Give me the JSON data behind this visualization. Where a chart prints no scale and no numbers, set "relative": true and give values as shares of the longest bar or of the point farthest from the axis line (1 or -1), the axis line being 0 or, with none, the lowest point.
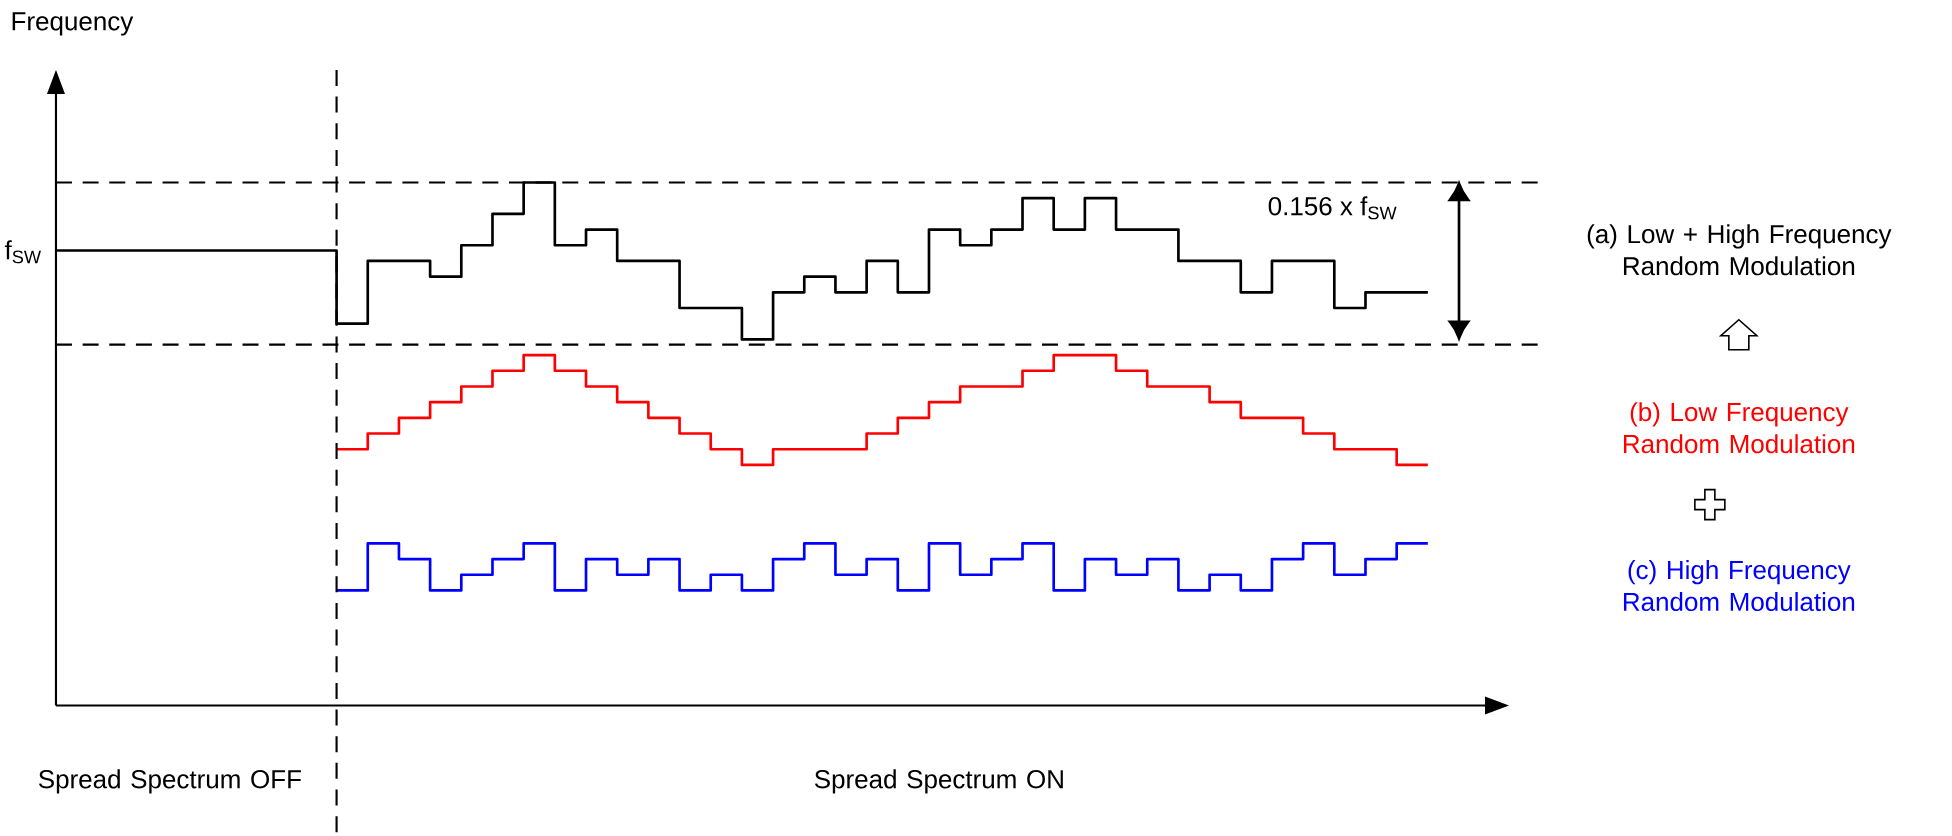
{
  "chart_data": {
    "type": "step",
    "relative": true,
    "tick_labels": false,
    "legend": "right",
    "categories": [
      null,
      null,
      null,
      null,
      null,
      null,
      null,
      null,
      null,
      null,
      null,
      null,
      null,
      null,
      null,
      null,
      null,
      null,
      null,
      null,
      null,
      null,
      null,
      null,
      null,
      null,
      null,
      null,
      null,
      null,
      null,
      null,
      null,
      null,
      null,
      null,
      null,
      null,
      null,
      null,
      null,
      null,
      null,
      null,
      null
    ],
    "series": [
      {
        "name": "(a) Low + High Frequency Random Modulation",
        "color": "#000000",
        "values": [
          0.87,
          0.87,
          0.87,
          0.87,
          0.87,
          0.87,
          0.87,
          0.87,
          0.87,
          0.73,
          0.85,
          0.85,
          0.82,
          0.88,
          0.94,
          1,
          0.88,
          0.91,
          0.85,
          0.85,
          0.76,
          0.76,
          0.7,
          0.79,
          0.82,
          0.79,
          0.85,
          0.79,
          0.91,
          0.88,
          0.91,
          0.97,
          0.91,
          0.97,
          0.91,
          0.91,
          0.85,
          0.85,
          0.79,
          0.85,
          0.85,
          0.76,
          0.79,
          0.79,
          0.79
        ]
      },
      {
        "name": "(b) Low Frequency Random Modulation",
        "color": "#ff0000",
        "values": [
          null,
          null,
          null,
          null,
          null,
          null,
          null,
          null,
          null,
          0.49,
          0.52,
          0.55,
          0.58,
          0.61,
          0.64,
          0.67,
          0.64,
          0.61,
          0.58,
          0.55,
          0.52,
          0.49,
          0.46,
          0.49,
          0.49,
          0.49,
          0.52,
          0.55,
          0.58,
          0.61,
          0.61,
          0.64,
          0.67,
          0.67,
          0.64,
          0.61,
          0.61,
          0.58,
          0.55,
          0.55,
          0.52,
          0.49,
          0.49,
          0.46,
          0.46
        ]
      },
      {
        "name": "(c) High Frequency Random Modulation",
        "color": "#0000ff",
        "values": [
          null,
          null,
          null,
          null,
          null,
          null,
          null,
          null,
          null,
          0.22,
          0.31,
          0.28,
          0.22,
          0.25,
          0.28,
          0.31,
          0.22,
          0.28,
          0.25,
          0.28,
          0.22,
          0.25,
          0.22,
          0.28,
          0.31,
          0.25,
          0.28,
          0.22,
          0.31,
          0.25,
          0.28,
          0.31,
          0.22,
          0.28,
          0.25,
          0.28,
          0.22,
          0.25,
          0.22,
          0.28,
          0.31,
          0.25,
          0.28,
          0.31,
          0.31
        ]
      }
    ],
    "ref_lines": [
      {
        "axis": "y",
        "value": 1.0,
        "line_style": "dashed"
      },
      {
        "axis": "y",
        "value": 0.69,
        "line_style": "dashed"
      }
    ],
    "annotations": [
      "Frequency",
      "f$_{SW}$",
      "0.156 x f$_{SW}$",
      "Spread Spectrum OFF",
      "Spread Spectrum ON"
    ]
  }
}
